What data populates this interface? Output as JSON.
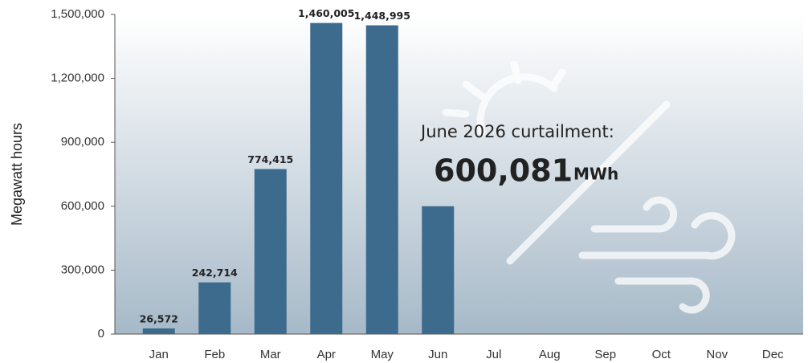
{
  "chart_data": {
    "type": "bar",
    "y_label": "Megawatt hours",
    "categories": [
      "Jan",
      "Feb",
      "Mar",
      "Apr",
      "May",
      "Jun",
      "Jul",
      "Aug",
      "Sep",
      "Oct",
      "Nov",
      "Dec"
    ],
    "values": [
      26572,
      242714,
      774415,
      1460005,
      1448995,
      600081,
      null,
      null,
      null,
      null,
      null,
      null
    ],
    "value_labels": [
      "26,572",
      "242,714",
      "774,415",
      "1,460,005",
      "1,448,995",
      null,
      null,
      null,
      null,
      null,
      null,
      null
    ],
    "color": "#3d6b8e",
    "ylim": [
      0,
      1500000
    ],
    "yticks": [
      0,
      {
        "value": 300000,
        "label": "300,000"
      },
      {
        "value": 600000,
        "label": "600,000"
      },
      {
        "value": 900000,
        "label": "900,000"
      },
      {
        "value": 1200000,
        "label": "1,200,000"
      },
      {
        "value": 1500000,
        "label": "1,500,000"
      }
    ],
    "annotation": {
      "text": "June 2026 curtailment:",
      "value": "600,081",
      "unit": "MWh"
    }
  }
}
